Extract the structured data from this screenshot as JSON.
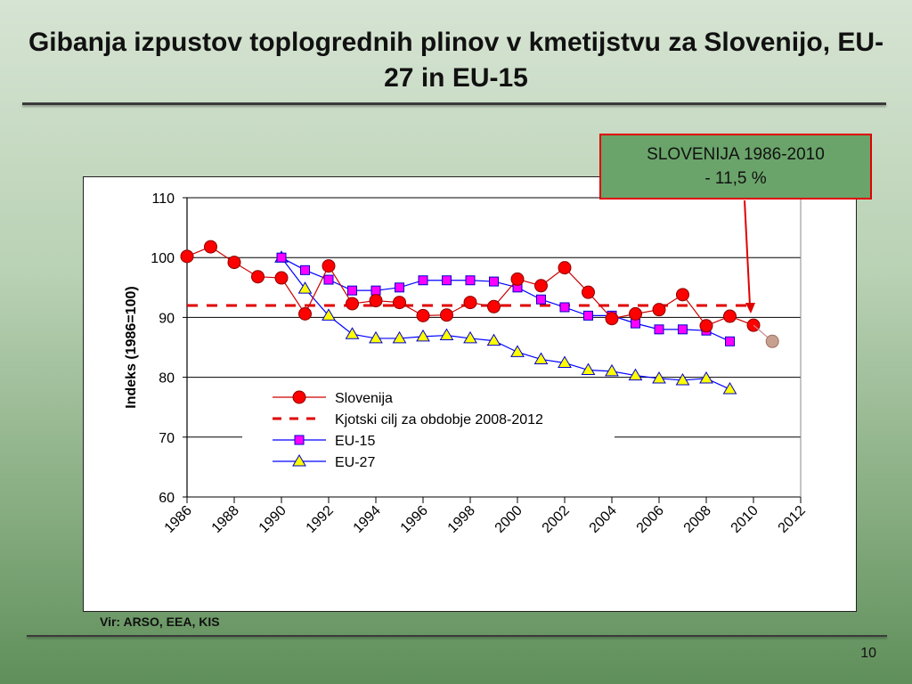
{
  "slide": {
    "title": "Gibanja izpustov toplogrednih plinov v kmetijstvu za Slovenijo, EU-27 in EU-15",
    "source": "Vir: ARSO, EEA, KIS",
    "page_number": "10",
    "callout": {
      "line1": "SLOVENIJA 1986-2010",
      "line2": "- 11,5 %"
    }
  },
  "colors": {
    "slovenija": "#ff0000",
    "kyoto": "#e00000",
    "eu15": "#ff00ff",
    "eu27": "#ffff00",
    "series_line": "#0000ff",
    "extrapolated": "#c8a090"
  },
  "chart_data": {
    "type": "line",
    "title": "",
    "xlabel": "",
    "ylabel": "Indeks (1986=100)",
    "xlim": [
      1986,
      2012
    ],
    "ylim": [
      60,
      110
    ],
    "x_ticks": [
      "1986",
      "1988",
      "1990",
      "1992",
      "1994",
      "1996",
      "1998",
      "2000",
      "2002",
      "2004",
      "2006",
      "2008",
      "2010",
      "2012"
    ],
    "y_ticks": [
      "60",
      "70",
      "80",
      "90",
      "100",
      "110"
    ],
    "grid": true,
    "legend_position": "center-left",
    "series": [
      {
        "name": "Slovenija",
        "marker": "circle",
        "x": [
          1986,
          1987,
          1988,
          1989,
          1990,
          1991,
          1992,
          1993,
          1994,
          1995,
          1996,
          1997,
          1998,
          1999,
          2000,
          2001,
          2002,
          2003,
          2004,
          2005,
          2006,
          2007,
          2008,
          2009,
          2010
        ],
        "y": [
          100.2,
          101.8,
          99.2,
          96.8,
          96.6,
          90.6,
          98.6,
          92.3,
          92.8,
          92.5,
          90.3,
          90.4,
          92.5,
          91.8,
          96.4,
          95.3,
          98.3,
          94.2,
          89.8,
          90.6,
          91.3,
          93.8,
          88.6,
          90.2,
          88.7
        ]
      },
      {
        "name": "Kjotski cilj za obdobje 2008-2012",
        "style": "dashed",
        "x": [
          1986,
          2010
        ],
        "y": [
          92,
          92
        ]
      },
      {
        "name": "EU-15",
        "marker": "square",
        "x": [
          1990,
          1991,
          1992,
          1993,
          1994,
          1995,
          1996,
          1997,
          1998,
          1999,
          2000,
          2001,
          2002,
          2003,
          2004,
          2005,
          2006,
          2007,
          2008,
          2009
        ],
        "y": [
          100,
          97.9,
          96.3,
          94.5,
          94.5,
          95,
          96.2,
          96.2,
          96.2,
          96,
          95,
          93,
          91.7,
          90.3,
          90.3,
          89,
          88,
          88,
          87.8,
          86
        ]
      },
      {
        "name": "EU-27",
        "marker": "triangle",
        "x": [
          1990,
          1991,
          1992,
          1993,
          1994,
          1995,
          1996,
          1997,
          1998,
          1999,
          2000,
          2001,
          2002,
          2003,
          2004,
          2005,
          2006,
          2007,
          2008,
          2009
        ],
        "y": [
          100,
          94.8,
          90.3,
          87.2,
          86.5,
          86.5,
          86.8,
          87,
          86.5,
          86.1,
          84.2,
          83,
          82.4,
          81.2,
          81,
          80.3,
          79.8,
          79.5,
          79.8,
          78
        ]
      }
    ],
    "extra_point": {
      "x": 2010.8,
      "y": 86
    }
  }
}
